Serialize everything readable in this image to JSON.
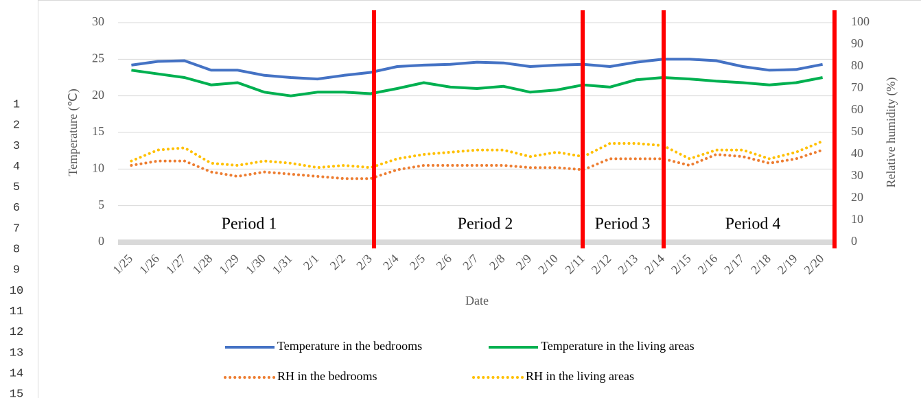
{
  "row_numbers": [
    1,
    2,
    3,
    4,
    5,
    6,
    7,
    8,
    9,
    10,
    11,
    12,
    13,
    14,
    15
  ],
  "chart_data": {
    "type": "line",
    "x_label": "Date",
    "y_label": "Temperature (℃)",
    "y2_label": "Relative humidity (%)",
    "annotations": [
      "Period 1",
      "Period 2",
      "Period 3",
      "Period 4"
    ],
    "categories": [
      "1/25",
      "1/26",
      "1/27",
      "1/28",
      "1/29",
      "1/30",
      "1/31",
      "2/1",
      "2/2",
      "2/3",
      "2/4",
      "2/5",
      "2/6",
      "2/7",
      "2/8",
      "2/9",
      "2/10",
      "2/11",
      "2/12",
      "2/13",
      "2/14",
      "2/15",
      "2/16",
      "2/17",
      "2/18",
      "2/19",
      "2/20"
    ],
    "ylim": [
      0,
      30
    ],
    "yticks": [
      0,
      5,
      10,
      15,
      20,
      25,
      30
    ],
    "y2lim": [
      0,
      100
    ],
    "y2ticks": [
      0,
      10,
      20,
      30,
      40,
      50,
      60,
      70,
      80,
      90,
      100
    ],
    "grid": true,
    "legend": "bottom",
    "series": [
      {
        "name": "Temperature in the bedrooms",
        "color": "#4472c4",
        "style": "solid",
        "values": [
          24.2,
          24.7,
          24.8,
          23.5,
          23.5,
          22.8,
          22.5,
          22.3,
          22.8,
          23.2,
          24.0,
          24.2,
          24.3,
          24.6,
          24.5,
          24.0,
          24.2,
          24.3,
          24.0,
          24.6,
          25.0,
          25.0,
          24.8,
          24.0,
          23.5,
          23.6,
          24.3
        ]
      },
      {
        "name": "Temperature in the living areas",
        "color": "#00b050",
        "style": "solid",
        "values": [
          23.5,
          23.0,
          22.5,
          21.5,
          21.8,
          20.5,
          20.0,
          20.5,
          20.5,
          20.3,
          21.0,
          21.8,
          21.2,
          21.0,
          21.3,
          20.5,
          20.8,
          21.5,
          21.2,
          22.2,
          22.5,
          22.3,
          22.0,
          21.8,
          21.5,
          21.8,
          22.5
        ]
      },
      {
        "name": "RH in the bedrooms",
        "color": "#ed7d31",
        "style": "dotted",
        "axis": "y2",
        "values": [
          35,
          37,
          37,
          32,
          30,
          32,
          31,
          30,
          29,
          29,
          33,
          35,
          35,
          35,
          35,
          34,
          34,
          33,
          38,
          38,
          38,
          35,
          40,
          39,
          36,
          38,
          42
        ]
      },
      {
        "name": "RH in the living areas",
        "color": "#ffc000",
        "style": "dotted",
        "axis": "y2",
        "values": [
          37,
          42,
          43,
          36,
          35,
          37,
          36,
          34,
          35,
          34,
          38,
          40,
          41,
          42,
          42,
          39,
          41,
          39,
          45,
          45,
          44,
          38,
          42,
          42,
          38,
          41,
          46
        ]
      }
    ]
  }
}
